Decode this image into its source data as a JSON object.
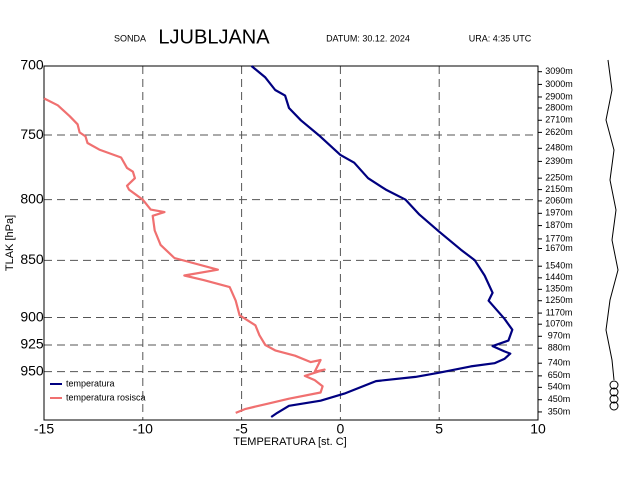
{
  "chart_data": {
    "type": "line",
    "title_left": "SONDA",
    "title": "LJUBLJANA",
    "date": "DATUM: 30.12. 2024",
    "time": "URA:  4:35 UTC",
    "xlabel": "TEMPERATURA [st. C]",
    "ylabel": "TLAK [hPa]",
    "xlim": [
      -15,
      10
    ],
    "xticks": [
      -15,
      -10,
      -5,
      0,
      5,
      10
    ],
    "ylim": [
      997,
      700
    ],
    "yticks": [
      700,
      750,
      800,
      850,
      900,
      925,
      950
    ],
    "ylog": true,
    "grid": true,
    "legend": "lower left",
    "y2lim": [
      997,
      700
    ],
    "y2ticks": [
      {
        "value": 704,
        "label": "3090m"
      },
      {
        "value": 713,
        "label": "3000m"
      },
      {
        "value": 722,
        "label": "2900m"
      },
      {
        "value": 730,
        "label": "2800m"
      },
      {
        "value": 739,
        "label": "2710m"
      },
      {
        "value": 748,
        "label": "2620m"
      },
      {
        "value": 760,
        "label": "2480m"
      },
      {
        "value": 770,
        "label": "2390m"
      },
      {
        "value": 783,
        "label": "2250m"
      },
      {
        "value": 792,
        "label": "2150m"
      },
      {
        "value": 801,
        "label": "2060m"
      },
      {
        "value": 811,
        "label": "1970m"
      },
      {
        "value": 821,
        "label": "1870m"
      },
      {
        "value": 832,
        "label": "1770m"
      },
      {
        "value": 840,
        "label": "1670m"
      },
      {
        "value": 855,
        "label": "1540m"
      },
      {
        "value": 865,
        "label": "1440m"
      },
      {
        "value": 875,
        "label": "1350m"
      },
      {
        "value": 885,
        "label": "1250m"
      },
      {
        "value": 896,
        "label": "1170m"
      },
      {
        "value": 906,
        "label": "1070m"
      },
      {
        "value": 917,
        "label": "970m"
      },
      {
        "value": 928,
        "label": "880m"
      },
      {
        "value": 942,
        "label": "740m"
      },
      {
        "value": 954,
        "label": "650m"
      },
      {
        "value": 965,
        "label": "540m"
      },
      {
        "value": 977,
        "label": "450m"
      },
      {
        "value": 989,
        "label": "350m"
      }
    ],
    "series": [
      {
        "name": "temperatura",
        "color": "#000080",
        "x": [
          -4.5,
          -3.8,
          -3.3,
          -2.8,
          -2.6,
          -2.0,
          -1.1,
          0.0,
          0.7,
          1.4,
          2.3,
          3.3,
          4.0,
          5.0,
          6.1,
          6.8,
          7.3,
          7.7,
          7.5,
          8.3,
          8.7,
          8.5,
          7.7,
          8.3,
          8.6,
          8.3,
          7.8,
          6.6,
          5.0,
          3.8,
          1.8,
          0.2,
          -1.0,
          -2.6,
          -3.2,
          -3.5
        ],
        "values": [
          700,
          708,
          717,
          721,
          730,
          739,
          750,
          765,
          771,
          783,
          792,
          800,
          812,
          826,
          841,
          850,
          863,
          878,
          885,
          901,
          911,
          921,
          926,
          931,
          933,
          938,
          942,
          945,
          951,
          955,
          959,
          971,
          978,
          983,
          990,
          994
        ]
      },
      {
        "name": "temperatura rosisca",
        "color": "#f07070",
        "x": [
          -15.0,
          -14.3,
          -13.7,
          -13.3,
          -13.2,
          -12.9,
          -12.8,
          -12.2,
          -11.1,
          -10.8,
          -10.5,
          -10.4,
          -10.8,
          -10.7,
          -10.0,
          -9.6,
          -8.9,
          -9.5,
          -9.4,
          -9.1,
          -8.4,
          -6.2,
          -7.9,
          -6.9,
          -5.6,
          -5.3,
          -5.1,
          -4.3,
          -4.1,
          -3.8,
          -3.3,
          -2.3,
          -1.5,
          -1.0,
          -1.3,
          -0.8,
          -1.8,
          -1.3,
          -0.9,
          -1.0,
          -2.6,
          -3.7,
          -4.8,
          -5.3
        ],
        "values": [
          723,
          728,
          736,
          742,
          748,
          751,
          756,
          761,
          767,
          775,
          778,
          783,
          789,
          792,
          800,
          808,
          810,
          813,
          825,
          837,
          848,
          858,
          863,
          867,
          873,
          885,
          898,
          907,
          916,
          925,
          930,
          935,
          941,
          939,
          950,
          948,
          954,
          958,
          964,
          970,
          976,
          981,
          986,
          990
        ]
      }
    ]
  }
}
